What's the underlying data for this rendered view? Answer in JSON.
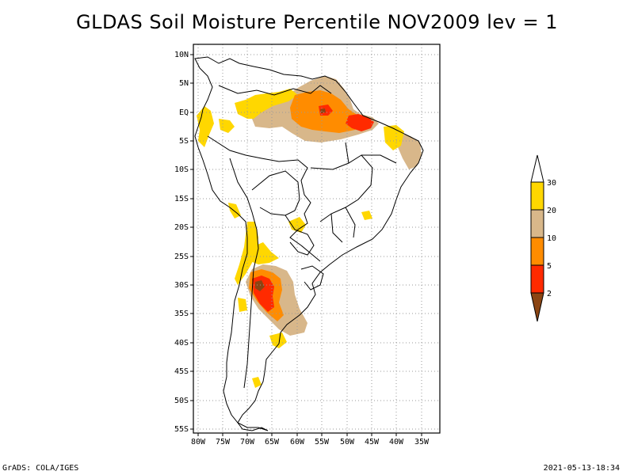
{
  "title": "GLDAS Soil Moisture Percentile NOV2009 lev = 1",
  "footer": {
    "left": "GrADS: COLA/IGES",
    "right": "2021-05-13-18:34"
  },
  "lat_labels": [
    "10N",
    "5N",
    "EQ",
    "5S",
    "10S",
    "15S",
    "20S",
    "25S",
    "30S",
    "35S",
    "40S",
    "45S",
    "50S",
    "55S"
  ],
  "lon_labels": [
    "80W",
    "75W",
    "70W",
    "65W",
    "60W",
    "55W",
    "50W",
    "45W",
    "40W",
    "35W"
  ],
  "legend": {
    "labels": [
      "30",
      "20",
      "10",
      "5",
      "2"
    ],
    "colors": {
      "gt30": "#ffffff",
      "20-30": "#ffd700",
      "10-20": "#d8b78a",
      "5-10": "#ff8c00",
      "2-5": "#ff2a00",
      "lt2": "#8b4513"
    }
  },
  "map": {
    "lon_range": [
      -80,
      -30
    ],
    "lat_range": [
      -56,
      11
    ],
    "grid": true
  }
}
